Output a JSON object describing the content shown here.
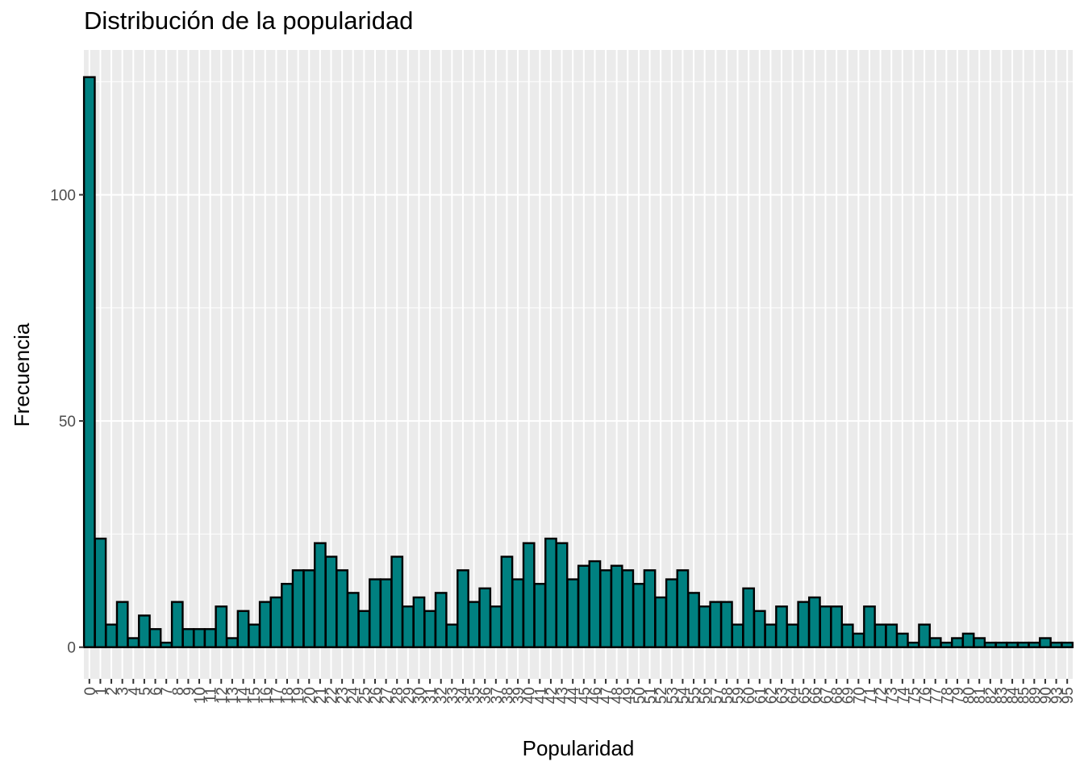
{
  "chart_data": {
    "type": "bar",
    "title": "Distribución de la popularidad",
    "xlabel": "Popularidad",
    "ylabel": "Frecuencia",
    "ylim": [
      -7,
      132
    ],
    "y_ticks": [
      "0",
      "50",
      "100"
    ],
    "grid": true,
    "fill_color": "#008080",
    "edge_color": "#000000",
    "panel_color": "#EBEBEB",
    "categories": [
      "0",
      "1",
      "2",
      "3",
      "4",
      "5",
      "6",
      "7",
      "8",
      "9",
      "10",
      "11",
      "12",
      "13",
      "14",
      "15",
      "16",
      "17",
      "18",
      "19",
      "20",
      "21",
      "22",
      "23",
      "24",
      "25",
      "26",
      "27",
      "28",
      "29",
      "30",
      "31",
      "32",
      "33",
      "34",
      "35",
      "36",
      "37",
      "38",
      "39",
      "40",
      "41",
      "42",
      "43",
      "44",
      "45",
      "46",
      "47",
      "48",
      "49",
      "50",
      "51",
      "52",
      "53",
      "54",
      "55",
      "56",
      "57",
      "58",
      "59",
      "60",
      "61",
      "62",
      "63",
      "64",
      "65",
      "66",
      "67",
      "68",
      "69",
      "70",
      "71",
      "72",
      "73",
      "74",
      "75",
      "76",
      "77",
      "78",
      "79",
      "80",
      "81",
      "82",
      "83",
      "84",
      "85",
      "89",
      "90",
      "93",
      "95"
    ],
    "values": [
      126,
      24,
      5,
      10,
      2,
      7,
      4,
      1,
      10,
      4,
      4,
      4,
      9,
      2,
      8,
      5,
      10,
      11,
      14,
      17,
      17,
      23,
      20,
      17,
      12,
      8,
      15,
      15,
      20,
      9,
      11,
      8,
      12,
      5,
      17,
      10,
      13,
      9,
      20,
      15,
      23,
      14,
      24,
      23,
      15,
      18,
      19,
      17,
      18,
      17,
      14,
      17,
      11,
      15,
      17,
      12,
      9,
      10,
      10,
      5,
      13,
      8,
      5,
      9,
      5,
      10,
      11,
      9,
      9,
      5,
      3,
      9,
      5,
      5,
      3,
      1,
      5,
      2,
      1,
      2,
      3,
      2,
      1,
      1,
      1,
      1,
      1,
      2,
      1,
      1
    ]
  }
}
